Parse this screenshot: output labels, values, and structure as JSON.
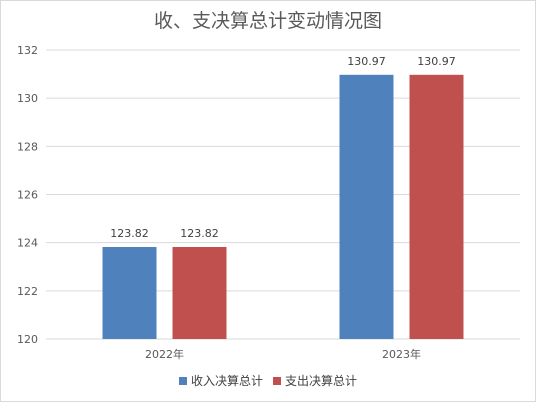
{
  "chart_data": {
    "type": "bar",
    "title": "收、支决算总计变动情况图",
    "categories": [
      "2022年",
      "2023年"
    ],
    "series": [
      {
        "name": "收入决算总计",
        "values": [
          123.82,
          130.97
        ],
        "color": "#4f81bd"
      },
      {
        "name": "支出决算总计",
        "values": [
          123.82,
          130.97
        ],
        "color": "#c0504d"
      }
    ],
    "data_labels": [
      [
        "123.82",
        "130.97"
      ],
      [
        "123.82",
        "130.97"
      ]
    ],
    "ylim": [
      120,
      132
    ],
    "yticks": [
      120,
      122,
      124,
      126,
      128,
      130,
      132
    ],
    "grid": true,
    "legend_position": "bottom"
  }
}
